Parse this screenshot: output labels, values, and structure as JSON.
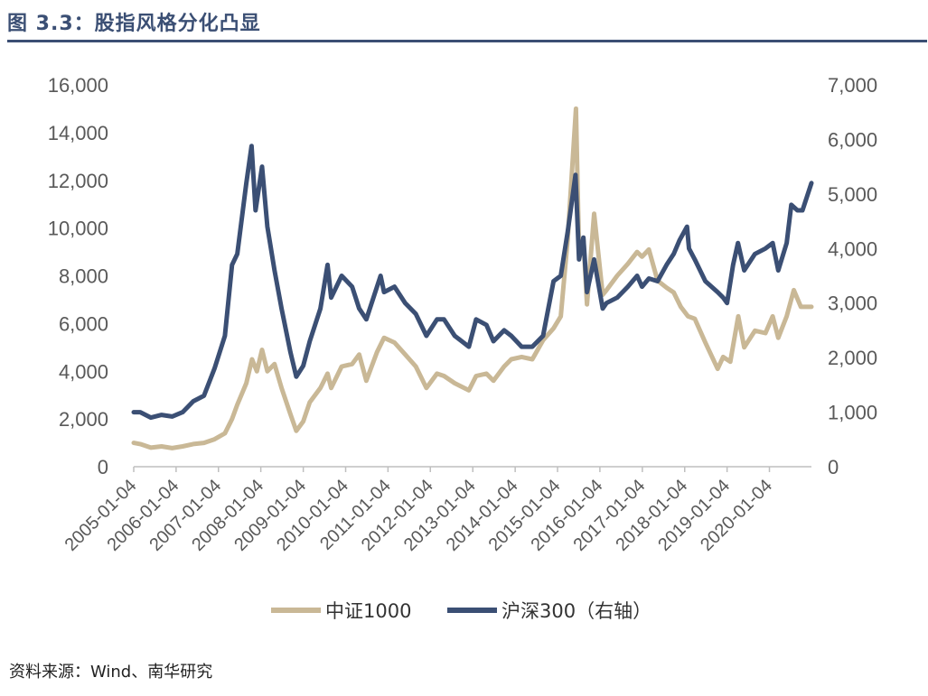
{
  "header": {
    "title": "图 3.3：股指风格分化凸显",
    "rule_color": "#3B4F74"
  },
  "source": "资料来源：Wind、南华研究",
  "chart_data": {
    "type": "line",
    "title": "",
    "x_ticks": [
      "2005-01-04",
      "2006-01-04",
      "2007-01-04",
      "2008-01-04",
      "2009-01-04",
      "2010-01-04",
      "2011-01-04",
      "2012-01-04",
      "2013-01-04",
      "2014-01-04",
      "2015-01-04",
      "2016-01-04",
      "2017-01-04",
      "2018-01-04",
      "2019-01-04",
      "2020-01-04"
    ],
    "x_range": [
      "2005-01-04",
      "2020-12-31"
    ],
    "y_left": {
      "ticks": [
        "0",
        "2,000",
        "4,000",
        "6,000",
        "8,000",
        "10,000",
        "12,000",
        "14,000",
        "16,000"
      ],
      "range": [
        0,
        16000
      ]
    },
    "y_right": {
      "ticks": [
        "0",
        "1,000",
        "2,000",
        "3,000",
        "4,000",
        "5,000",
        "6,000",
        "7,000"
      ],
      "range": [
        0,
        7000
      ]
    },
    "grid": false,
    "legend_position": "bottom",
    "series": [
      {
        "name": "中证1000",
        "axis": "left",
        "color": "#C9B896",
        "points": [
          [
            "2005-01-04",
            1000
          ],
          [
            "2005-03-01",
            950
          ],
          [
            "2005-06-01",
            800
          ],
          [
            "2005-09-01",
            850
          ],
          [
            "2005-12-01",
            780
          ],
          [
            "2006-03-01",
            850
          ],
          [
            "2006-06-01",
            950
          ],
          [
            "2006-09-01",
            1000
          ],
          [
            "2006-12-01",
            1150
          ],
          [
            "2007-03-01",
            1400
          ],
          [
            "2007-05-01",
            2000
          ],
          [
            "2007-06-15",
            2600
          ],
          [
            "2007-09-01",
            3500
          ],
          [
            "2007-10-20",
            4500
          ],
          [
            "2007-12-01",
            4000
          ],
          [
            "2008-01-15",
            4900
          ],
          [
            "2008-03-01",
            4000
          ],
          [
            "2008-05-01",
            4300
          ],
          [
            "2008-07-01",
            3300
          ],
          [
            "2008-09-15",
            2200
          ],
          [
            "2008-11-05",
            1500
          ],
          [
            "2009-01-04",
            1900
          ],
          [
            "2009-03-01",
            2700
          ],
          [
            "2009-06-01",
            3300
          ],
          [
            "2009-08-01",
            3900
          ],
          [
            "2009-09-01",
            3300
          ],
          [
            "2009-12-01",
            4200
          ],
          [
            "2010-03-01",
            4300
          ],
          [
            "2010-05-01",
            4700
          ],
          [
            "2010-07-01",
            3600
          ],
          [
            "2010-10-01",
            4800
          ],
          [
            "2010-12-01",
            5400
          ],
          [
            "2011-03-01",
            5200
          ],
          [
            "2011-06-01",
            4700
          ],
          [
            "2011-09-01",
            4200
          ],
          [
            "2011-12-01",
            3300
          ],
          [
            "2012-03-01",
            3900
          ],
          [
            "2012-05-01",
            3800
          ],
          [
            "2012-08-01",
            3500
          ],
          [
            "2012-12-01",
            3200
          ],
          [
            "2013-02-01",
            3800
          ],
          [
            "2013-05-01",
            3900
          ],
          [
            "2013-07-01",
            3600
          ],
          [
            "2013-10-01",
            4200
          ],
          [
            "2013-12-01",
            4500
          ],
          [
            "2014-03-01",
            4600
          ],
          [
            "2014-06-01",
            4500
          ],
          [
            "2014-09-01",
            5300
          ],
          [
            "2014-12-01",
            5800
          ],
          [
            "2015-02-01",
            6300
          ],
          [
            "2015-04-01",
            9500
          ],
          [
            "2015-06-12",
            15000
          ],
          [
            "2015-07-08",
            9000
          ],
          [
            "2015-08-15",
            9600
          ],
          [
            "2015-09-15",
            6800
          ],
          [
            "2015-11-15",
            10600
          ],
          [
            "2016-01-28",
            7200
          ],
          [
            "2016-03-01",
            7400
          ],
          [
            "2016-06-01",
            8000
          ],
          [
            "2016-09-01",
            8500
          ],
          [
            "2016-11-20",
            9000
          ],
          [
            "2017-01-01",
            8800
          ],
          [
            "2017-03-01",
            9100
          ],
          [
            "2017-05-15",
            7800
          ],
          [
            "2017-08-01",
            7500
          ],
          [
            "2017-10-01",
            7300
          ],
          [
            "2017-12-01",
            6700
          ],
          [
            "2018-02-01",
            6300
          ],
          [
            "2018-04-01",
            6200
          ],
          [
            "2018-07-01",
            5200
          ],
          [
            "2018-10-15",
            4100
          ],
          [
            "2018-12-01",
            4600
          ],
          [
            "2019-02-01",
            4400
          ],
          [
            "2019-04-10",
            6300
          ],
          [
            "2019-06-01",
            5000
          ],
          [
            "2019-09-01",
            5700
          ],
          [
            "2019-12-01",
            5600
          ],
          [
            "2020-02-01",
            6300
          ],
          [
            "2020-03-20",
            5400
          ],
          [
            "2020-06-01",
            6300
          ],
          [
            "2020-08-01",
            7400
          ],
          [
            "2020-10-01",
            6700
          ],
          [
            "2020-12-31",
            6700
          ]
        ]
      },
      {
        "name": "沪深300（右轴）",
        "axis": "right",
        "color": "#3B4F74",
        "points": [
          [
            "2005-01-04",
            1000
          ],
          [
            "2005-03-01",
            1000
          ],
          [
            "2005-06-01",
            900
          ],
          [
            "2005-09-01",
            950
          ],
          [
            "2005-12-01",
            920
          ],
          [
            "2006-03-01",
            1000
          ],
          [
            "2006-06-01",
            1200
          ],
          [
            "2006-09-01",
            1300
          ],
          [
            "2006-12-01",
            1800
          ],
          [
            "2007-03-01",
            2400
          ],
          [
            "2007-05-01",
            3700
          ],
          [
            "2007-06-15",
            3900
          ],
          [
            "2007-09-01",
            5200
          ],
          [
            "2007-10-16",
            5880
          ],
          [
            "2007-11-20",
            4700
          ],
          [
            "2008-01-15",
            5500
          ],
          [
            "2008-03-01",
            4400
          ],
          [
            "2008-05-01",
            3600
          ],
          [
            "2008-07-01",
            2900
          ],
          [
            "2008-09-15",
            2100
          ],
          [
            "2008-11-05",
            1650
          ],
          [
            "2009-01-04",
            1850
          ],
          [
            "2009-03-01",
            2300
          ],
          [
            "2009-06-01",
            2900
          ],
          [
            "2009-08-01",
            3700
          ],
          [
            "2009-09-01",
            3100
          ],
          [
            "2009-12-01",
            3500
          ],
          [
            "2010-03-01",
            3300
          ],
          [
            "2010-05-01",
            2900
          ],
          [
            "2010-07-01",
            2700
          ],
          [
            "2010-11-01",
            3500
          ],
          [
            "2010-12-01",
            3200
          ],
          [
            "2011-03-01",
            3300
          ],
          [
            "2011-06-01",
            3000
          ],
          [
            "2011-09-01",
            2800
          ],
          [
            "2011-12-01",
            2400
          ],
          [
            "2012-03-01",
            2700
          ],
          [
            "2012-05-01",
            2700
          ],
          [
            "2012-08-01",
            2400
          ],
          [
            "2012-12-01",
            2200
          ],
          [
            "2013-02-01",
            2700
          ],
          [
            "2013-05-01",
            2600
          ],
          [
            "2013-07-01",
            2300
          ],
          [
            "2013-10-01",
            2500
          ],
          [
            "2013-12-01",
            2400
          ],
          [
            "2014-03-01",
            2200
          ],
          [
            "2014-06-01",
            2200
          ],
          [
            "2014-09-01",
            2400
          ],
          [
            "2014-12-01",
            3400
          ],
          [
            "2015-02-01",
            3500
          ],
          [
            "2015-04-01",
            4300
          ],
          [
            "2015-06-08",
            5350
          ],
          [
            "2015-07-08",
            3800
          ],
          [
            "2015-08-15",
            4200
          ],
          [
            "2015-09-15",
            3200
          ],
          [
            "2015-11-15",
            3800
          ],
          [
            "2016-01-28",
            2900
          ],
          [
            "2016-03-01",
            3000
          ],
          [
            "2016-06-01",
            3100
          ],
          [
            "2016-09-01",
            3300
          ],
          [
            "2016-11-20",
            3500
          ],
          [
            "2017-01-01",
            3300
          ],
          [
            "2017-03-01",
            3450
          ],
          [
            "2017-05-15",
            3400
          ],
          [
            "2017-08-01",
            3700
          ],
          [
            "2017-10-01",
            3900
          ],
          [
            "2017-11-20",
            4150
          ],
          [
            "2018-01-24",
            4400
          ],
          [
            "2018-02-10",
            4000
          ],
          [
            "2018-04-01",
            3800
          ],
          [
            "2018-07-01",
            3400
          ],
          [
            "2018-10-15",
            3200
          ],
          [
            "2018-12-01",
            3100
          ],
          [
            "2019-01-04",
            3000
          ],
          [
            "2019-02-25",
            3700
          ],
          [
            "2019-04-08",
            4100
          ],
          [
            "2019-06-01",
            3600
          ],
          [
            "2019-09-01",
            3900
          ],
          [
            "2019-12-01",
            4000
          ],
          [
            "2020-02-01",
            4100
          ],
          [
            "2020-03-20",
            3600
          ],
          [
            "2020-06-01",
            4100
          ],
          [
            "2020-07-10",
            4800
          ],
          [
            "2020-09-01",
            4700
          ],
          [
            "2020-10-15",
            4700
          ],
          [
            "2020-12-31",
            5200
          ]
        ]
      }
    ]
  }
}
